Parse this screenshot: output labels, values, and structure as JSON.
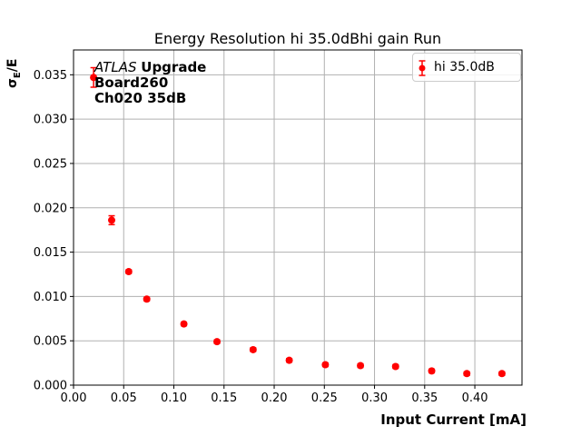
{
  "title": "Energy Resolution hi 35.0dBhi gain Run",
  "axes": {
    "xlabel": "Input Current [mA]",
    "ylabel": {
      "sigma": "σ",
      "subscript": "E",
      "rest": "/E"
    }
  },
  "annotation": {
    "experiment": "ATLAS",
    "tag": "Upgrade",
    "line2": "Board260",
    "line3": "Ch020 35dB"
  },
  "legend": {
    "label": "hi 35.0dB"
  },
  "colors": {
    "series": "#ff0000",
    "grid": "#b0b0b0",
    "spine": "#000000",
    "legend_border": "#cccccc"
  },
  "chart_data": {
    "type": "scatter",
    "title": "Energy Resolution hi 35.0dBhi gain Run",
    "xlabel": "Input Current [mA]",
    "ylabel": "σ_E/E",
    "grid": true,
    "legend_position": "upper right",
    "xlim": [
      0,
      0.447
    ],
    "ylim": [
      0,
      0.0378
    ],
    "x_ticks": {
      "values": [
        0.0,
        0.05,
        0.1,
        0.15,
        0.2,
        0.25,
        0.3,
        0.35,
        0.4
      ],
      "labels": [
        "0.00",
        "0.05",
        "0.10",
        "0.15",
        "0.20",
        "0.25",
        "0.30",
        "0.35",
        "0.40"
      ]
    },
    "y_ticks": {
      "values": [
        0.0,
        0.005,
        0.01,
        0.015,
        0.02,
        0.025,
        0.03,
        0.035
      ],
      "labels": [
        "0.000",
        "0.005",
        "0.010",
        "0.015",
        "0.020",
        "0.025",
        "0.030",
        "0.035"
      ]
    },
    "series": [
      {
        "name": "hi 35.0dB",
        "color": "#ff0000",
        "marker": "circle",
        "x": [
          0.02,
          0.038,
          0.055,
          0.073,
          0.11,
          0.143,
          0.179,
          0.215,
          0.251,
          0.286,
          0.321,
          0.357,
          0.392,
          0.427
        ],
        "y": [
          0.0347,
          0.0186,
          0.0128,
          0.0097,
          0.0069,
          0.0049,
          0.004,
          0.0028,
          0.0023,
          0.0022,
          0.0021,
          0.0016,
          0.0013,
          0.0013
        ],
        "yerr": [
          0.0011,
          0.0005,
          0.0002,
          0.0002,
          0.0002,
          0.0002,
          0.0002,
          0.0002,
          0.0002,
          0.0002,
          0.0002,
          0.0002,
          0.0002,
          0.0002
        ]
      }
    ]
  }
}
